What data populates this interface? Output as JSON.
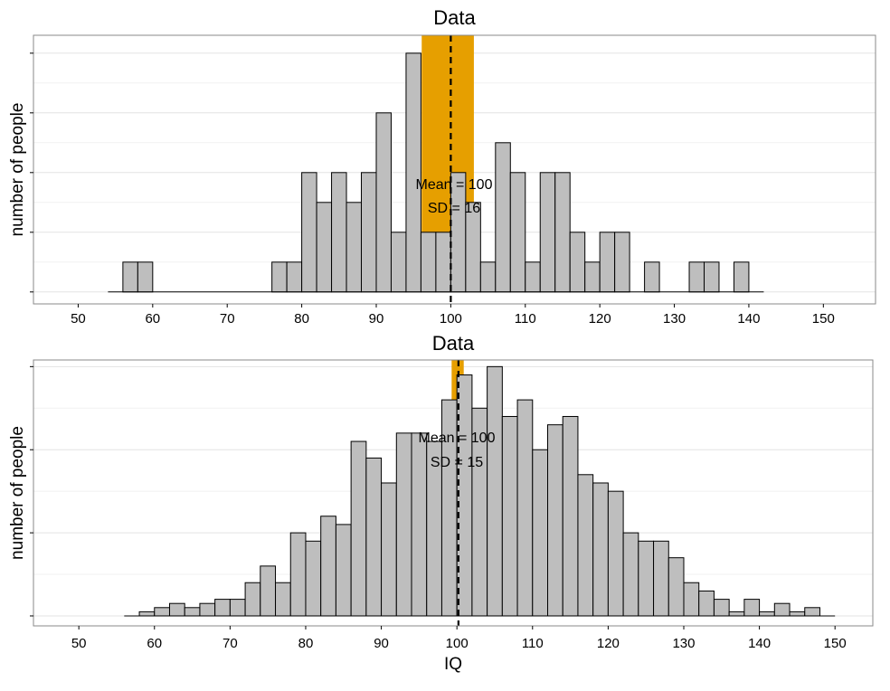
{
  "chart_data": [
    {
      "type": "histogram",
      "title": "Data",
      "xlabel": "",
      "ylabel": "number of people",
      "xlim": [
        44,
        157
      ],
      "ylim": [
        -0.4,
        8.6
      ],
      "x_ticks": [
        50,
        60,
        70,
        80,
        90,
        100,
        110,
        120,
        130,
        140,
        150
      ],
      "y_ticks": [
        0,
        2,
        4,
        6,
        8
      ],
      "bin_start": 54,
      "bin_width": 2,
      "counts": [
        0,
        1,
        1,
        0,
        0,
        0,
        0,
        0,
        0,
        0,
        0,
        1,
        1,
        4,
        3,
        4,
        3,
        4,
        6,
        2,
        8,
        2,
        2,
        4,
        3,
        1,
        5,
        4,
        1,
        4,
        4,
        2,
        1,
        2,
        2,
        0,
        1,
        0,
        0,
        1,
        1,
        0,
        1,
        0
      ],
      "mean": 100,
      "sd": 16,
      "ci_band": [
        96.1,
        103.1
      ],
      "annotations": [
        "Mean = 100",
        "SD = 16"
      ]
    },
    {
      "type": "histogram",
      "title": "Data",
      "xlabel": "IQ",
      "ylabel": "number of people",
      "xlim": [
        44,
        155
      ],
      "ylim": [
        -1.2,
        30.8
      ],
      "x_ticks": [
        50,
        60,
        70,
        80,
        90,
        100,
        110,
        120,
        130,
        140,
        150
      ],
      "y_ticks": [
        0,
        10,
        20,
        30
      ],
      "bin_start": 56,
      "bin_width": 2,
      "counts": [
        0,
        0.5,
        1,
        1.5,
        1,
        1.5,
        2,
        2,
        4,
        6,
        4,
        10,
        9,
        12,
        11,
        21,
        19,
        16,
        22,
        22,
        21,
        26,
        29,
        25,
        30,
        24,
        26,
        20,
        23,
        24,
        17,
        16,
        15,
        10,
        9,
        9,
        7,
        4,
        3,
        2,
        0.5,
        2,
        0.5,
        1.5,
        0.5,
        1,
        0
      ],
      "mean": 100.2,
      "sd": 15,
      "ci_band": [
        99.3,
        100.9
      ],
      "annotations": [
        "Mean = 100",
        "SD = 15"
      ]
    }
  ]
}
